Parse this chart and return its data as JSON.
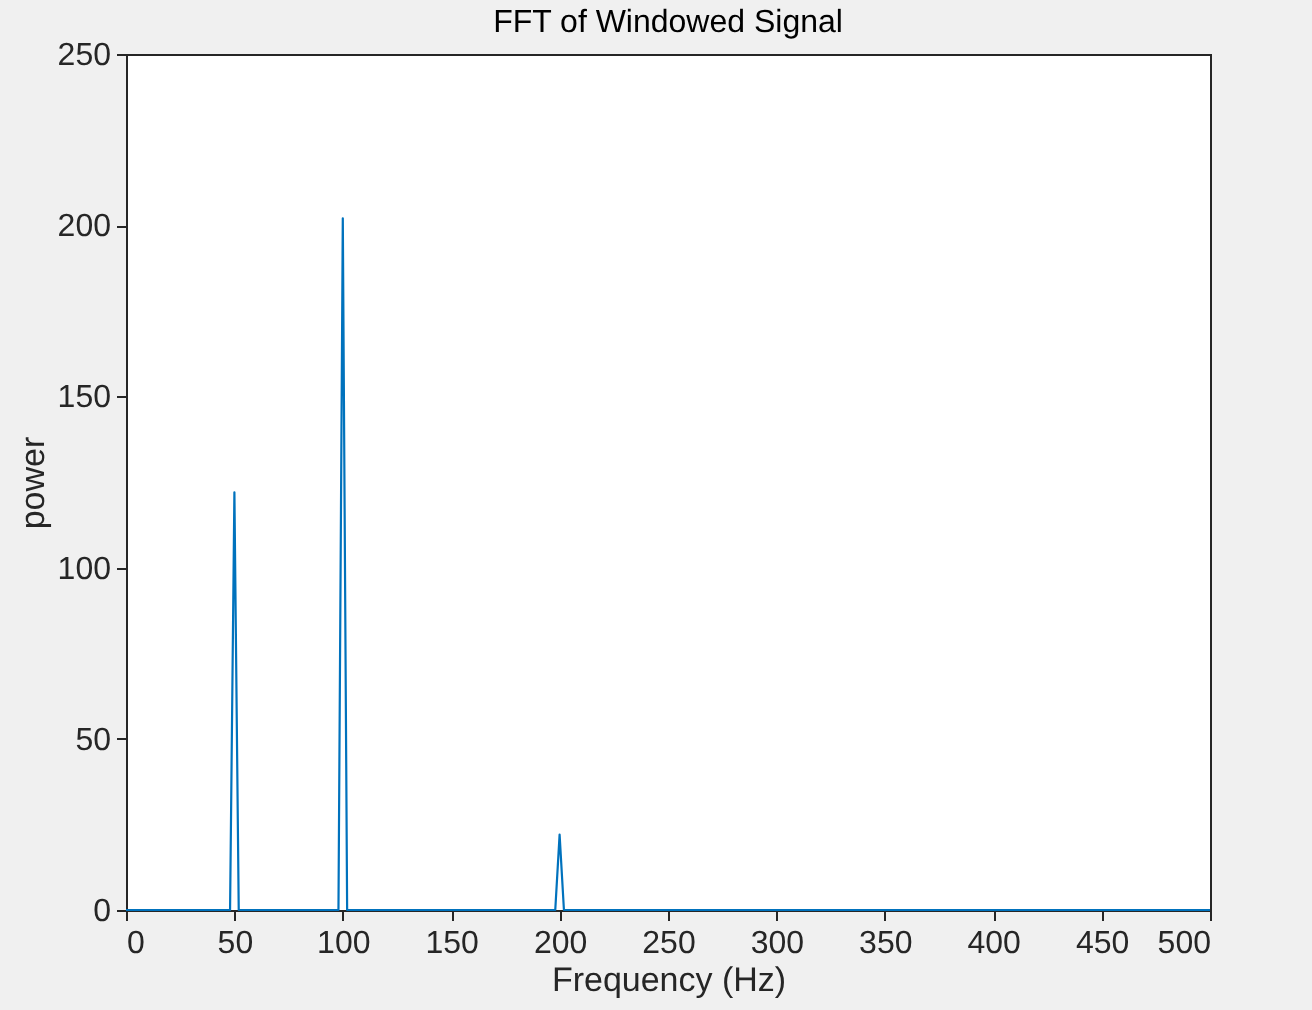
{
  "chart_data": {
    "type": "line",
    "title": "FFT of Windowed Signal",
    "xlabel": "Frequency (Hz)",
    "ylabel": "power",
    "x": [
      0,
      48,
      50,
      52,
      98,
      100,
      102,
      198,
      200,
      202,
      500
    ],
    "series": [
      {
        "color": "#0072bd",
        "values": [
          0,
          0,
          122,
          0,
          0,
          202,
          0,
          0,
          22,
          0,
          0
        ]
      }
    ],
    "xlim": [
      0,
      500
    ],
    "xticks": [
      0,
      50,
      100,
      150,
      200,
      250,
      300,
      350,
      400,
      450,
      500
    ],
    "ylim": [
      0,
      250
    ],
    "yticks": [
      0,
      50,
      100,
      150,
      200,
      250
    ],
    "grid": false,
    "marker": "none",
    "line_style": "solid"
  }
}
